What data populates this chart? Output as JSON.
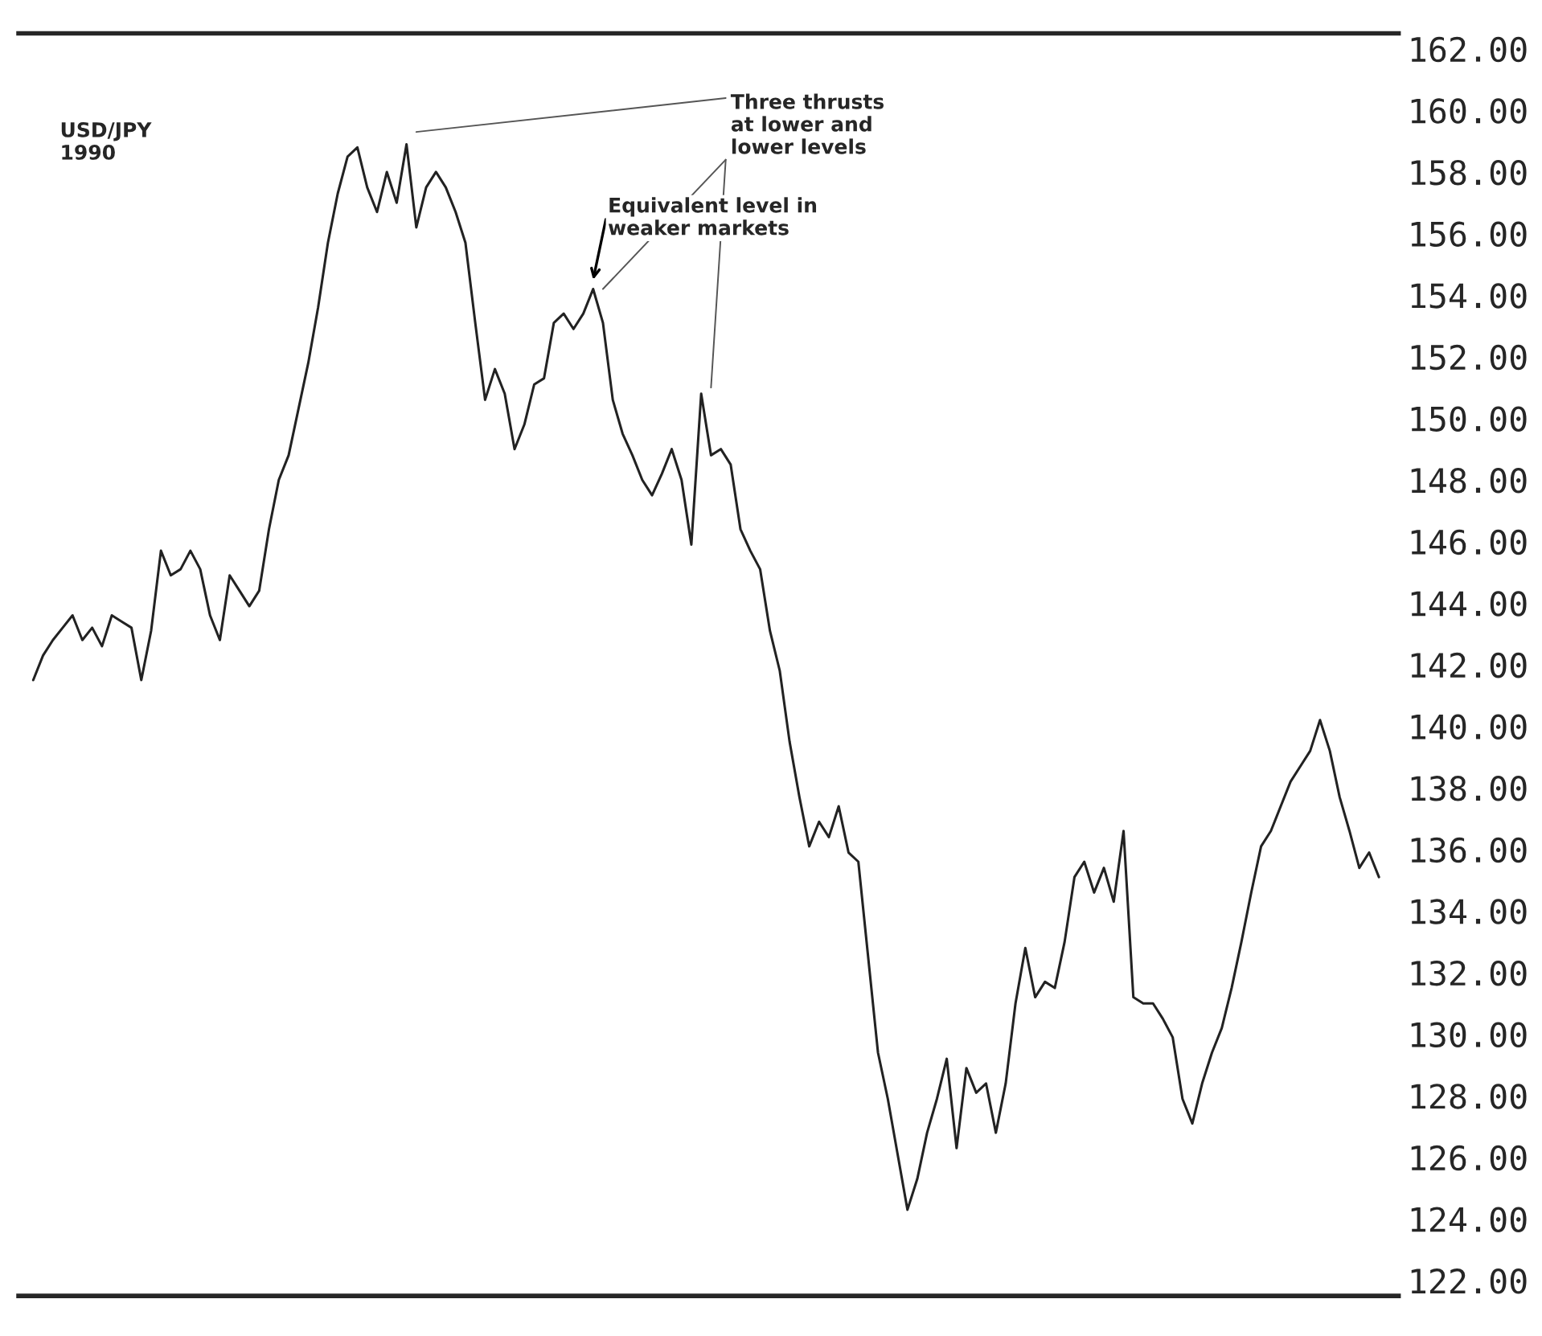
{
  "chart_data": {
    "type": "line",
    "title": "USD/JPY",
    "subtitle": "1990",
    "categories": [
      null,
      null,
      null,
      null,
      null,
      null,
      null,
      null,
      null,
      null,
      null,
      null,
      null,
      null,
      null,
      null,
      null,
      null,
      null,
      null,
      null,
      null,
      null,
      null,
      null,
      null,
      null,
      null,
      null,
      null,
      null,
      null,
      null,
      null,
      null,
      null,
      null,
      null,
      null,
      null,
      null,
      null,
      null,
      null,
      null,
      null,
      null,
      null,
      null,
      null,
      null,
      null,
      null,
      null,
      null,
      null,
      null,
      null,
      null,
      null,
      null,
      null,
      null,
      null,
      null,
      null,
      null,
      null,
      null,
      null,
      null,
      null,
      null,
      null,
      null,
      null,
      null,
      null,
      null,
      null,
      null,
      null,
      null,
      null,
      null,
      null,
      null,
      null,
      null,
      null,
      null,
      null,
      null,
      null,
      null,
      null,
      null,
      null,
      null,
      null,
      null,
      null,
      null,
      null,
      null,
      null,
      null,
      null,
      null,
      null,
      null,
      null,
      null,
      null,
      null,
      null,
      null,
      null,
      null,
      null,
      null,
      null,
      null,
      null,
      null,
      null,
      null,
      null,
      null,
      null,
      null,
      null,
      null,
      null,
      null,
      null,
      null,
      null
    ],
    "series": [
      {
        "color": "#222222",
        "values": [
          141.5,
          142.3,
          142.8,
          143.2,
          143.6,
          142.8,
          143.2,
          142.6,
          143.6,
          143.4,
          143.2,
          141.5,
          143.1,
          145.7,
          144.9,
          145.1,
          145.7,
          145.1,
          143.6,
          142.8,
          144.9,
          144.4,
          143.9,
          144.4,
          146.4,
          148.0,
          148.8,
          150.3,
          151.8,
          153.6,
          155.7,
          157.3,
          158.5,
          158.8,
          157.5,
          156.7,
          158.0,
          157.0,
          158.9,
          156.2,
          157.5,
          158.0,
          157.5,
          156.7,
          155.7,
          153.1,
          150.6,
          151.6,
          150.8,
          149.0,
          149.8,
          151.1,
          151.3,
          153.1,
          153.4,
          152.9,
          153.4,
          154.2,
          153.1,
          150.6,
          149.5,
          148.8,
          148.0,
          147.5,
          148.2,
          149.0,
          148.0,
          145.9,
          150.8,
          148.8,
          149.0,
          148.5,
          146.4,
          145.7,
          145.1,
          143.1,
          141.8,
          139.5,
          137.7,
          136.1,
          136.9,
          136.4,
          137.4,
          135.9,
          135.6,
          132.5,
          129.4,
          127.9,
          126.1,
          124.3,
          125.3,
          126.8,
          127.9,
          129.2,
          126.3,
          128.9,
          128.1,
          128.4,
          126.8,
          128.4,
          131.0,
          132.8,
          131.2,
          131.7,
          131.5,
          133.0,
          135.1,
          135.6,
          134.6,
          135.4,
          134.3,
          136.6,
          131.2,
          131.0,
          131.0,
          130.5,
          129.9,
          127.9,
          127.1,
          128.4,
          129.4,
          130.2,
          131.5,
          133.0,
          134.6,
          136.1,
          136.6,
          137.4,
          138.2,
          138.7,
          139.2,
          140.2,
          139.2,
          137.7,
          136.6,
          135.4,
          135.9,
          135.1
        ]
      }
    ],
    "annotations": [
      "Equivalent level in\nweaker markets",
      "Three thrusts\nat lower and\nlower levels"
    ],
    "ylim": [
      121.5,
      162.5
    ],
    "yticks": [
      {
        "value": 162,
        "label": "162.00"
      },
      {
        "value": 160,
        "label": "160.00"
      },
      {
        "value": 158,
        "label": "158.00"
      },
      {
        "value": 156,
        "label": "156.00"
      },
      {
        "value": 154,
        "label": "154.00"
      },
      {
        "value": 152,
        "label": "152.00"
      },
      {
        "value": 150,
        "label": "150.00"
      },
      {
        "value": 148,
        "label": "148.00"
      },
      {
        "value": 146,
        "label": "146.00"
      },
      {
        "value": 144,
        "label": "144.00"
      },
      {
        "value": 142,
        "label": "142.00"
      },
      {
        "value": 140,
        "label": "140.00"
      },
      {
        "value": 138,
        "label": "138.00"
      },
      {
        "value": 136,
        "label": "136.00"
      },
      {
        "value": 134,
        "label": "134.00"
      },
      {
        "value": 132,
        "label": "132.00"
      },
      {
        "value": 130,
        "label": "130.00"
      },
      {
        "value": 128,
        "label": "128.00"
      },
      {
        "value": 126,
        "label": "126.00"
      },
      {
        "value": 124,
        "label": "124.00"
      },
      {
        "value": 122,
        "label": "122.00"
      }
    ],
    "tick_labels": "y",
    "grid": false,
    "legend": false,
    "line_style": "solid",
    "marker": "none"
  }
}
